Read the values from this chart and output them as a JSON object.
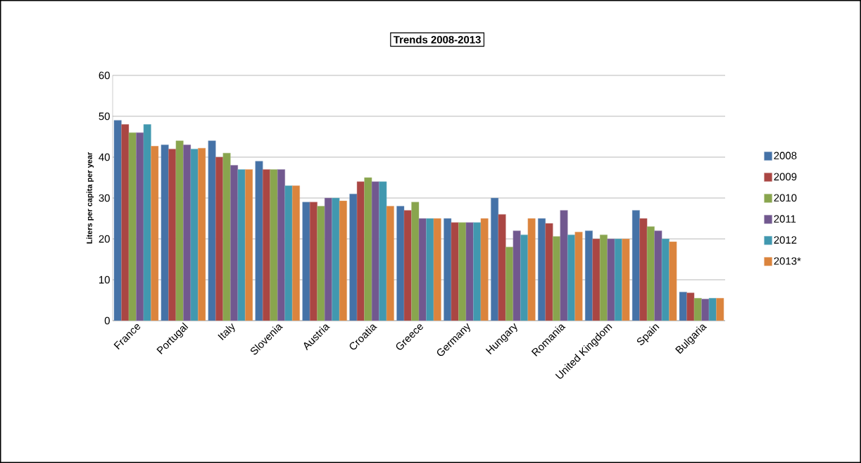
{
  "chart_data": {
    "type": "bar",
    "title": "Trends 2008-2013",
    "ylabel": "Liters per capita per year",
    "categories": [
      "France",
      "Portugal",
      "Italy",
      "Slovenia",
      "Austria",
      "Croatia",
      "Greece",
      "Germany",
      "Hungary",
      "Romania",
      "United Kingdom",
      "Spain",
      "Bulgaria"
    ],
    "series": [
      {
        "name": "2008",
        "color": "#4572a7",
        "values": [
          49,
          43,
          44,
          39,
          29,
          31,
          28,
          25,
          30,
          25,
          22,
          27,
          7
        ]
      },
      {
        "name": "2009",
        "color": "#aa4643",
        "values": [
          48,
          42,
          40,
          37,
          29,
          34,
          27,
          24,
          26,
          23.8,
          20,
          25,
          6.8
        ]
      },
      {
        "name": "2010",
        "color": "#89a54e",
        "values": [
          46,
          44,
          41,
          37,
          28,
          35,
          29,
          24,
          18,
          20.6,
          21,
          23,
          5.5
        ]
      },
      {
        "name": "2011",
        "color": "#71588f",
        "values": [
          46,
          43,
          38,
          37,
          30,
          34,
          25,
          24,
          22,
          27,
          20,
          22,
          5.3
        ]
      },
      {
        "name": "2012",
        "color": "#4198af",
        "values": [
          48,
          42,
          37,
          33,
          30,
          34,
          25,
          24,
          21,
          21,
          20,
          20,
          5.5
        ]
      },
      {
        "name": "2013*",
        "color": "#db843d",
        "values": [
          42.7,
          42.2,
          37,
          33,
          29.3,
          28,
          25,
          25,
          25,
          21.7,
          20,
          19.3,
          5.5
        ]
      }
    ],
    "ylim": [
      0,
      60
    ],
    "yticks": [
      0,
      10,
      20,
      30,
      40,
      50,
      60
    ],
    "grid": "y",
    "legend": "right"
  }
}
